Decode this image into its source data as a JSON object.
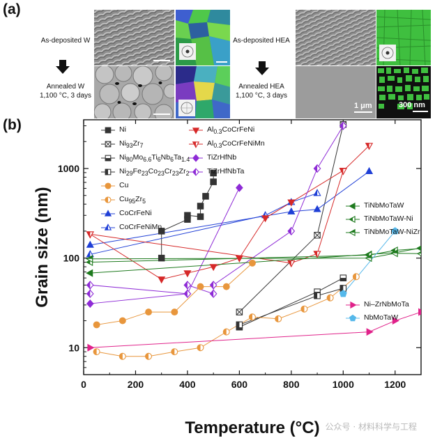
{
  "panel_a": {
    "label": "(a)",
    "captions": {
      "asdep_w": "As-deposited W",
      "annealed_w_1": "Annealed W",
      "annealed_w_2": "1,100 °C, 3 days",
      "asdep_hea": "As-deposited HEA",
      "annealed_hea_1": "Annealed HEA",
      "annealed_hea_2": "1,100 °C, 3 days"
    },
    "scale_bars": {
      "sem": "1 μm",
      "ebsd": "300 nm"
    },
    "colors": {
      "sem_gray": "#9a9a9a",
      "ebsd_green": "#3fbf3f",
      "ebsd_black": "#101010"
    }
  },
  "panel_b": {
    "label": "(b)"
  },
  "watermark": "公众号 · 材料科学与工程",
  "chart_data": {
    "type": "scatter",
    "xlabel": "Temperature (°C)",
    "ylabel": "Grain size (nm)",
    "xlim": [
      0,
      1300
    ],
    "ylim": [
      5,
      3500
    ],
    "yscale": "log",
    "xticks": [
      0,
      200,
      400,
      600,
      800,
      1000,
      1200
    ],
    "yticks": [
      10,
      100,
      1000
    ],
    "legend_position": "top-left / top-center / middle-right",
    "series": [
      {
        "name": "Ni",
        "legend_html": "Ni",
        "color": "#333333",
        "marker": "square",
        "fill": "full",
        "points": [
          [
            300,
            100
          ],
          [
            300,
            200
          ],
          [
            400,
            270
          ],
          [
            400,
            300
          ],
          [
            450,
            290
          ],
          [
            450,
            380
          ],
          [
            470,
            490
          ],
          [
            500,
            710
          ],
          [
            500,
            890
          ]
        ]
      },
      {
        "name": "Ni93Zr7",
        "legend_html": "Ni<sub>93</sub>Zr<sub>7</sub>",
        "color": "#333333",
        "marker": "square",
        "fill": "cross",
        "points": [
          [
            600,
            25
          ],
          [
            900,
            180
          ],
          [
            1000,
            3100
          ]
        ]
      },
      {
        "name": "Ni80Mo6.6Ti6Nb6Ta1.4",
        "legend_html": "Ni<sub>80</sub>Mo<sub>6.6</sub>Ti<sub>6</sub>Nb<sub>6</sub>Ta<sub>1.4</sub>",
        "color": "#333333",
        "marker": "square",
        "fill": "bottom",
        "points": [
          [
            600,
            17
          ],
          [
            900,
            42
          ],
          [
            1000,
            60
          ]
        ]
      },
      {
        "name": "Ni29Fe23Co23Cr23Zr2",
        "legend_html": "Ni<sub>29</sub>Fe<sub>23</sub>Co<sub>23</sub>Cr<sub>23</sub>Zr<sub>2</sub>",
        "color": "#333333",
        "marker": "square",
        "fill": "left",
        "points": [
          [
            600,
            18
          ],
          [
            900,
            38
          ],
          [
            1000,
            46
          ]
        ]
      },
      {
        "name": "Cu",
        "legend_html": "Cu",
        "color": "#e8963c",
        "marker": "circle",
        "fill": "full",
        "points": [
          [
            50,
            18
          ],
          [
            150,
            20
          ],
          [
            250,
            25
          ],
          [
            350,
            25
          ],
          [
            450,
            48
          ],
          [
            550,
            48
          ],
          [
            650,
            88
          ]
        ]
      },
      {
        "name": "Cu95Zr5",
        "legend_html": "Cu<sub>95</sub>Zr<sub>5</sub>",
        "color": "#e8963c",
        "marker": "circle",
        "fill": "left",
        "points": [
          [
            50,
            9
          ],
          [
            150,
            8
          ],
          [
            250,
            8
          ],
          [
            350,
            9
          ],
          [
            450,
            10
          ],
          [
            550,
            15
          ],
          [
            650,
            22
          ],
          [
            750,
            21
          ],
          [
            850,
            27
          ],
          [
            950,
            36
          ],
          [
            1050,
            62
          ]
        ]
      },
      {
        "name": "CoCrFeNi",
        "legend_html": "CoCrFeNi",
        "color": "#1f3fd6",
        "marker": "triangle-up",
        "fill": "full",
        "points": [
          [
            25,
            140
          ],
          [
            800,
            330
          ],
          [
            900,
            350
          ],
          [
            1100,
            930
          ]
        ]
      },
      {
        "name": "CoCrFeNiMn",
        "legend_html": "CoCrFeNiMn",
        "color": "#1f3fd6",
        "marker": "triangle-up",
        "fill": "left",
        "points": [
          [
            25,
            110
          ],
          [
            700,
            300
          ],
          [
            800,
            420
          ],
          [
            900,
            530
          ]
        ]
      },
      {
        "name": "Al0.3CoCrFeNi",
        "legend_html": "Al<sub>0.3</sub>CoCrFeNi",
        "color": "#d62828",
        "marker": "triangle-down",
        "fill": "full",
        "points": [
          [
            25,
            185
          ],
          [
            300,
            58
          ],
          [
            400,
            68
          ],
          [
            500,
            80
          ],
          [
            600,
            100
          ],
          [
            700,
            280
          ],
          [
            800,
            420
          ],
          [
            1000,
            950
          ]
        ]
      },
      {
        "name": "Al0.3CoCrFeNiMn",
        "legend_html": "Al<sub>0.3</sub>CoCrFeNiMn",
        "color": "#d62828",
        "marker": "triangle-down",
        "fill": "left",
        "points": [
          [
            25,
            185
          ],
          [
            800,
            88
          ],
          [
            900,
            112
          ],
          [
            1000,
            940
          ],
          [
            1100,
            1800
          ]
        ]
      },
      {
        "name": "TiZrHfNb",
        "legend_html": "TiZrHfNb",
        "color": "#8e2bd6",
        "marker": "diamond",
        "fill": "full",
        "points": [
          [
            25,
            31
          ],
          [
            400,
            40
          ],
          [
            600,
            610
          ]
        ]
      },
      {
        "name": "TiZrHfNbTa",
        "legend_html": "TiZrHfNbTa",
        "color": "#8e2bd6",
        "marker": "diamond",
        "fill": "left",
        "points": [
          [
            25,
            50
          ],
          [
            25,
            40
          ],
          [
            400,
            50
          ],
          [
            400,
            40
          ],
          [
            500,
            50
          ],
          [
            500,
            40
          ],
          [
            800,
            200
          ],
          [
            900,
            1000
          ],
          [
            1000,
            3000
          ]
        ]
      },
      {
        "name": "TiNbMoTaW",
        "legend_html": "TiNbMoTaW",
        "color": "#1e7a1e",
        "marker": "triangle-left",
        "fill": "full",
        "points": [
          [
            25,
            68
          ],
          [
            1100,
            110
          ],
          [
            1200,
            115
          ],
          [
            1300,
            130
          ]
        ]
      },
      {
        "name": "TiNbMoTaW-Ni",
        "legend_html": "TiNbMoTaW-Ni",
        "color": "#1e7a1e",
        "marker": "triangle-left",
        "fill": "left",
        "points": [
          [
            25,
            90
          ],
          [
            1100,
            108
          ],
          [
            1200,
            122
          ],
          [
            1300,
            128
          ]
        ]
      },
      {
        "name": "TiNbMoTaW-NiZr",
        "legend_html": "TiNbMoTaW-NiZr",
        "color": "#1e7a1e",
        "marker": "triangle-left",
        "fill": "half",
        "points": [
          [
            25,
            98
          ],
          [
            1100,
            100
          ],
          [
            1200,
            113
          ],
          [
            1300,
            112
          ]
        ]
      },
      {
        "name": "Ni-ZrNbMoTa",
        "legend_html": "Ni–ZrNbMoTa",
        "color": "#e0228a",
        "marker": "triangle-right",
        "fill": "full",
        "points": [
          [
            25,
            10
          ],
          [
            1100,
            15
          ],
          [
            1200,
            20
          ],
          [
            1300,
            25
          ]
        ]
      },
      {
        "name": "NbMoTaW",
        "legend_html": "NbMoTaW",
        "color": "#55b8ea",
        "marker": "pentagon",
        "fill": "full",
        "points": [
          [
            1000,
            40
          ],
          [
            1200,
            200
          ]
        ]
      }
    ]
  }
}
